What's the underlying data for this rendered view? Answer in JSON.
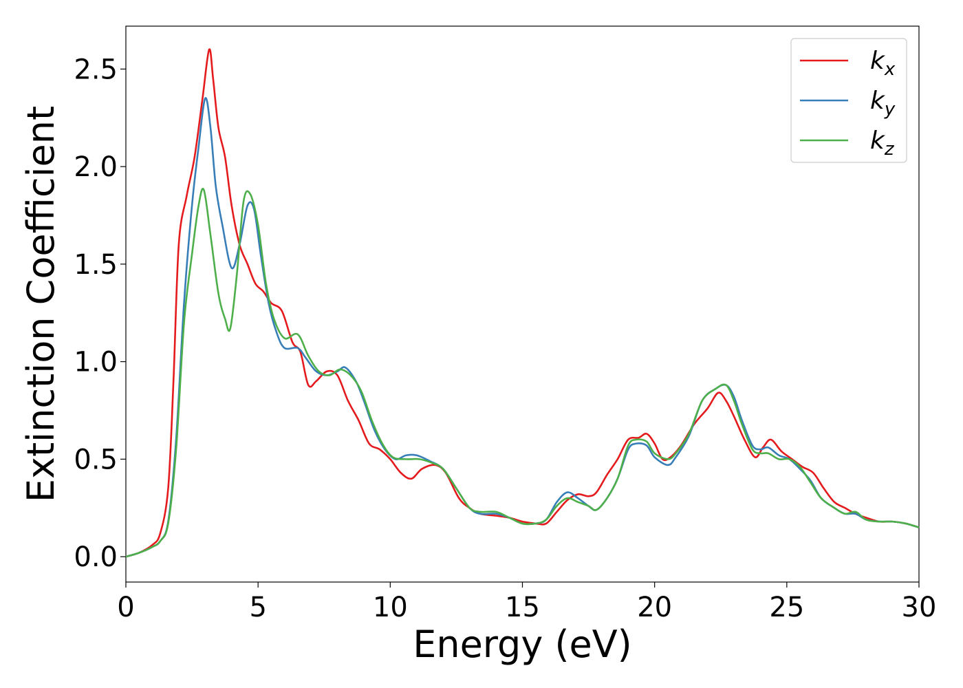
{
  "chart_data": {
    "type": "line",
    "xlabel": "Energy (eV)",
    "ylabel": "Extinction Coefficient",
    "xlim": [
      0,
      30
    ],
    "ylim": [
      -0.13,
      2.72
    ],
    "xticks": [
      "0",
      "5",
      "10",
      "15",
      "20",
      "25",
      "30"
    ],
    "yticks": [
      "0.0",
      "0.5",
      "1.0",
      "1.5",
      "2.0",
      "2.5"
    ],
    "grid": false,
    "legend": {
      "position": "top-right"
    },
    "series": [
      {
        "name": "k_x",
        "label_main": "k",
        "label_sub": "x",
        "color": "#e41a1c",
        "points": [
          [
            0,
            0
          ],
          [
            0.5,
            0.02
          ],
          [
            1.0,
            0.06
          ],
          [
            1.3,
            0.12
          ],
          [
            1.6,
            0.35
          ],
          [
            1.8,
            0.9
          ],
          [
            2.0,
            1.6
          ],
          [
            2.3,
            1.85
          ],
          [
            2.6,
            2.05
          ],
          [
            2.9,
            2.35
          ],
          [
            3.15,
            2.6
          ],
          [
            3.3,
            2.45
          ],
          [
            3.5,
            2.2
          ],
          [
            3.75,
            2.05
          ],
          [
            4.0,
            1.8
          ],
          [
            4.3,
            1.6
          ],
          [
            4.6,
            1.5
          ],
          [
            4.9,
            1.4
          ],
          [
            5.2,
            1.36
          ],
          [
            5.5,
            1.3
          ],
          [
            5.9,
            1.26
          ],
          [
            6.3,
            1.1
          ],
          [
            6.6,
            1.05
          ],
          [
            6.9,
            0.88
          ],
          [
            7.2,
            0.9
          ],
          [
            7.6,
            0.95
          ],
          [
            8.0,
            0.93
          ],
          [
            8.4,
            0.8
          ],
          [
            8.8,
            0.7
          ],
          [
            9.2,
            0.58
          ],
          [
            9.6,
            0.55
          ],
          [
            10.0,
            0.5
          ],
          [
            10.4,
            0.43
          ],
          [
            10.8,
            0.4
          ],
          [
            11.2,
            0.45
          ],
          [
            11.7,
            0.47
          ],
          [
            12.1,
            0.43
          ],
          [
            12.6,
            0.3
          ],
          [
            13.0,
            0.25
          ],
          [
            13.4,
            0.22
          ],
          [
            14.0,
            0.21
          ],
          [
            14.5,
            0.2
          ],
          [
            15.0,
            0.18
          ],
          [
            15.5,
            0.17
          ],
          [
            15.9,
            0.17
          ],
          [
            16.3,
            0.23
          ],
          [
            16.7,
            0.29
          ],
          [
            17.1,
            0.32
          ],
          [
            17.5,
            0.31
          ],
          [
            17.8,
            0.33
          ],
          [
            18.2,
            0.42
          ],
          [
            18.6,
            0.5
          ],
          [
            19.0,
            0.6
          ],
          [
            19.4,
            0.61
          ],
          [
            19.7,
            0.63
          ],
          [
            20.0,
            0.58
          ],
          [
            20.3,
            0.5
          ],
          [
            20.6,
            0.51
          ],
          [
            21.0,
            0.57
          ],
          [
            21.5,
            0.68
          ],
          [
            22.0,
            0.76
          ],
          [
            22.4,
            0.84
          ],
          [
            22.7,
            0.8
          ],
          [
            23.0,
            0.72
          ],
          [
            23.4,
            0.6
          ],
          [
            23.8,
            0.51
          ],
          [
            24.1,
            0.56
          ],
          [
            24.4,
            0.6
          ],
          [
            24.8,
            0.54
          ],
          [
            25.2,
            0.5
          ],
          [
            25.6,
            0.46
          ],
          [
            26.0,
            0.43
          ],
          [
            26.4,
            0.35
          ],
          [
            26.8,
            0.28
          ],
          [
            27.2,
            0.25
          ],
          [
            27.6,
            0.22
          ],
          [
            28.0,
            0.2
          ],
          [
            28.5,
            0.18
          ],
          [
            29.0,
            0.18
          ],
          [
            29.5,
            0.17
          ],
          [
            30.0,
            0.15
          ]
        ]
      },
      {
        "name": "k_y",
        "label_main": "k",
        "label_sub": "y",
        "color": "#377eb8",
        "points": [
          [
            0,
            0
          ],
          [
            0.5,
            0.02
          ],
          [
            1.0,
            0.05
          ],
          [
            1.3,
            0.08
          ],
          [
            1.6,
            0.18
          ],
          [
            1.9,
            0.6
          ],
          [
            2.2,
            1.3
          ],
          [
            2.5,
            1.8
          ],
          [
            2.75,
            2.1
          ],
          [
            3.0,
            2.35
          ],
          [
            3.2,
            2.2
          ],
          [
            3.4,
            1.9
          ],
          [
            3.65,
            1.7
          ],
          [
            4.0,
            1.48
          ],
          [
            4.3,
            1.6
          ],
          [
            4.6,
            1.8
          ],
          [
            4.85,
            1.78
          ],
          [
            5.1,
            1.55
          ],
          [
            5.4,
            1.3
          ],
          [
            5.7,
            1.15
          ],
          [
            6.0,
            1.07
          ],
          [
            6.5,
            1.07
          ],
          [
            6.8,
            1.02
          ],
          [
            7.2,
            0.95
          ],
          [
            7.6,
            0.93
          ],
          [
            8.0,
            0.95
          ],
          [
            8.3,
            0.97
          ],
          [
            8.7,
            0.9
          ],
          [
            9.0,
            0.8
          ],
          [
            9.4,
            0.65
          ],
          [
            9.8,
            0.55
          ],
          [
            10.2,
            0.5
          ],
          [
            10.6,
            0.52
          ],
          [
            11.0,
            0.52
          ],
          [
            11.5,
            0.49
          ],
          [
            12.0,
            0.45
          ],
          [
            12.5,
            0.35
          ],
          [
            13.0,
            0.25
          ],
          [
            13.4,
            0.22
          ],
          [
            14.0,
            0.22
          ],
          [
            14.5,
            0.2
          ],
          [
            15.0,
            0.17
          ],
          [
            15.5,
            0.17
          ],
          [
            15.9,
            0.19
          ],
          [
            16.3,
            0.28
          ],
          [
            16.7,
            0.33
          ],
          [
            17.1,
            0.3
          ],
          [
            17.5,
            0.26
          ],
          [
            17.8,
            0.24
          ],
          [
            18.2,
            0.3
          ],
          [
            18.6,
            0.4
          ],
          [
            19.0,
            0.55
          ],
          [
            19.3,
            0.58
          ],
          [
            19.7,
            0.57
          ],
          [
            20.0,
            0.51
          ],
          [
            20.5,
            0.47
          ],
          [
            20.8,
            0.51
          ],
          [
            21.3,
            0.62
          ],
          [
            21.8,
            0.8
          ],
          [
            22.3,
            0.86
          ],
          [
            22.7,
            0.88
          ],
          [
            23.0,
            0.82
          ],
          [
            23.3,
            0.7
          ],
          [
            23.7,
            0.57
          ],
          [
            24.0,
            0.55
          ],
          [
            24.3,
            0.56
          ],
          [
            24.7,
            0.52
          ],
          [
            25.1,
            0.5
          ],
          [
            25.5,
            0.45
          ],
          [
            25.9,
            0.39
          ],
          [
            26.3,
            0.3
          ],
          [
            26.8,
            0.25
          ],
          [
            27.2,
            0.22
          ],
          [
            27.6,
            0.22
          ],
          [
            28.0,
            0.19
          ],
          [
            28.5,
            0.18
          ],
          [
            29.0,
            0.18
          ],
          [
            29.5,
            0.17
          ],
          [
            30.0,
            0.15
          ]
        ]
      },
      {
        "name": "k_z",
        "label_main": "k",
        "label_sub": "z",
        "color": "#4daf4a",
        "points": [
          [
            0,
            0
          ],
          [
            0.5,
            0.02
          ],
          [
            1.0,
            0.05
          ],
          [
            1.3,
            0.08
          ],
          [
            1.6,
            0.17
          ],
          [
            1.9,
            0.55
          ],
          [
            2.2,
            1.2
          ],
          [
            2.5,
            1.55
          ],
          [
            2.75,
            1.8
          ],
          [
            2.95,
            1.88
          ],
          [
            3.2,
            1.65
          ],
          [
            3.5,
            1.35
          ],
          [
            3.75,
            1.22
          ],
          [
            3.95,
            1.17
          ],
          [
            4.2,
            1.45
          ],
          [
            4.45,
            1.82
          ],
          [
            4.7,
            1.86
          ],
          [
            5.0,
            1.7
          ],
          [
            5.3,
            1.4
          ],
          [
            5.6,
            1.22
          ],
          [
            6.0,
            1.12
          ],
          [
            6.5,
            1.14
          ],
          [
            6.9,
            1.03
          ],
          [
            7.3,
            0.95
          ],
          [
            7.7,
            0.93
          ],
          [
            8.1,
            0.96
          ],
          [
            8.5,
            0.93
          ],
          [
            8.9,
            0.85
          ],
          [
            9.3,
            0.7
          ],
          [
            9.7,
            0.58
          ],
          [
            10.1,
            0.51
          ],
          [
            10.6,
            0.5
          ],
          [
            11.1,
            0.5
          ],
          [
            11.6,
            0.48
          ],
          [
            12.0,
            0.45
          ],
          [
            12.5,
            0.35
          ],
          [
            13.0,
            0.25
          ],
          [
            13.4,
            0.23
          ],
          [
            14.0,
            0.23
          ],
          [
            14.5,
            0.2
          ],
          [
            15.0,
            0.17
          ],
          [
            15.5,
            0.17
          ],
          [
            15.9,
            0.19
          ],
          [
            16.3,
            0.26
          ],
          [
            16.7,
            0.3
          ],
          [
            17.1,
            0.28
          ],
          [
            17.5,
            0.26
          ],
          [
            17.8,
            0.24
          ],
          [
            18.2,
            0.3
          ],
          [
            18.6,
            0.4
          ],
          [
            19.0,
            0.57
          ],
          [
            19.3,
            0.6
          ],
          [
            19.7,
            0.59
          ],
          [
            20.0,
            0.53
          ],
          [
            20.5,
            0.5
          ],
          [
            20.8,
            0.53
          ],
          [
            21.3,
            0.63
          ],
          [
            21.8,
            0.8
          ],
          [
            22.3,
            0.86
          ],
          [
            22.7,
            0.88
          ],
          [
            23.0,
            0.8
          ],
          [
            23.3,
            0.68
          ],
          [
            23.7,
            0.55
          ],
          [
            24.0,
            0.53
          ],
          [
            24.3,
            0.53
          ],
          [
            24.7,
            0.5
          ],
          [
            25.1,
            0.5
          ],
          [
            25.5,
            0.46
          ],
          [
            25.9,
            0.38
          ],
          [
            26.3,
            0.3
          ],
          [
            26.8,
            0.25
          ],
          [
            27.2,
            0.22
          ],
          [
            27.6,
            0.23
          ],
          [
            28.0,
            0.19
          ],
          [
            28.5,
            0.18
          ],
          [
            29.0,
            0.18
          ],
          [
            29.5,
            0.17
          ],
          [
            30.0,
            0.15
          ]
        ]
      }
    ]
  }
}
